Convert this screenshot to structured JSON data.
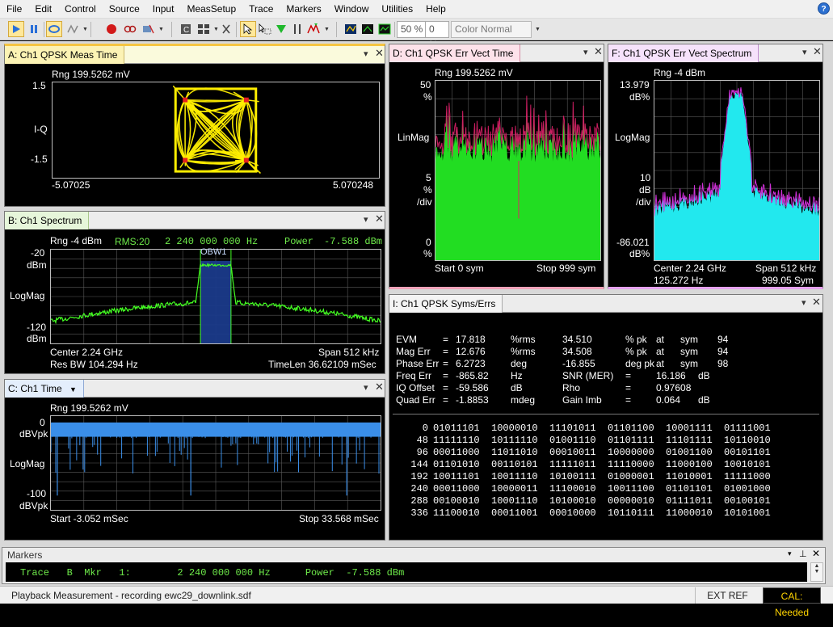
{
  "menu": [
    "File",
    "Edit",
    "Control",
    "Source",
    "Input",
    "MeasSetup",
    "Trace",
    "Markers",
    "Window",
    "Utilities",
    "Help"
  ],
  "toolbar": {
    "percent1": "50 %",
    "percent2": "0 %",
    "color_mode": "Color Normal"
  },
  "panes": {
    "a": {
      "title": "A: Ch1 QPSK Meas Time",
      "range": "Rng 199.5262 mV",
      "y_top": "1.5",
      "y_mid": "I-Q",
      "y_bot": "-1.5",
      "x_left": "-5.07025",
      "x_right": "5.070248",
      "trace_color": "#ffee00",
      "marker_color": "#e62020"
    },
    "b": {
      "title": "B: Ch1 Spectrum",
      "range": "Rng -4 dBm",
      "rms": "RMS:20",
      "freq": "2 240 000 000 Hz",
      "power_label": "Power",
      "power_value": "-7.588 dBm",
      "y_top": "-20",
      "y_top_unit": "dBm",
      "y_mid": "LogMag",
      "y_bot": "-120",
      "y_bot_unit": "dBm",
      "band_label": "OBW1",
      "center": "Center 2.24 GHz",
      "span": "Span 512 kHz",
      "res_bw": "Res BW 104.294  Hz",
      "time_len": "TimeLen 36.62109 mSec",
      "trace_color": "#44ff22"
    },
    "c": {
      "title": "C: Ch1 Time",
      "range": "Rng 199.5262 mV",
      "y_top": "0",
      "y_top_unit": "dBVpk",
      "y_mid": "LogMag",
      "y_bot": "-100",
      "y_bot_unit": "dBVpk",
      "start": "Start -3.052 mSec",
      "stop": "Stop 33.568 mSec",
      "trace_color": "#3a8ee8"
    },
    "d": {
      "title": "D: Ch1 QPSK Err Vect Time",
      "range": "Rng 199.5262 mV",
      "y_top": "50",
      "y_top_unit": "%",
      "y_mid": "LinMag",
      "y_div": "5",
      "y_div_unit": "%",
      "y_div_label": "/div",
      "y_bot": "0",
      "y_bot_unit": "%",
      "start": "Start 0  sym",
      "stop": "Stop 999  sym",
      "fill_color": "#22dd22",
      "peak_color": "#e0206a"
    },
    "f": {
      "title": "F: Ch1 QPSK Err Vect Spectrum",
      "range": "Rng -4 dBm",
      "y_top": "13.979",
      "y_top_unit": "dB%",
      "y_mid": "LogMag",
      "y_div": "10",
      "y_div_unit": "dB",
      "y_div_label": "/div",
      "y_bot": "-86.021",
      "y_bot_unit": "dB%",
      "center": "Center 2.24 GHz",
      "span": "Span 512 kHz",
      "res": "125.272  Hz",
      "sym": "999.05  Sym",
      "fill_color": "#22e8ee",
      "peak_color": "#d030d8"
    },
    "i": {
      "title": "I: Ch1 QPSK Syms/Errs",
      "errors": [
        {
          "name": "EVM",
          "eq": "=",
          "val": "17.818",
          "unit": "%rms",
          "val2": "34.510",
          "unit2": "% pk",
          "at": "at",
          "sym": "sym",
          "idx": "94",
          "extra": ""
        },
        {
          "name": "Mag Err",
          "eq": "=",
          "val": "12.676",
          "unit": "%rms",
          "val2": "34.508",
          "unit2": "% pk",
          "at": "at",
          "sym": "sym",
          "idx": "94",
          "extra": ""
        },
        {
          "name": "Phase Err",
          "eq": "=",
          "val": "6.2723",
          "unit": "deg",
          "val2": "-16.855",
          "unit2": "deg pk",
          "at": "at",
          "sym": "sym",
          "idx": "98",
          "extra": ""
        },
        {
          "name": "Freq Err",
          "eq": "=",
          "val": "-865.82",
          "unit": "Hz",
          "val2": "SNR (MER)",
          "unit2": "=",
          "at": "16.186",
          "sym": "",
          "idx": "",
          "extra": "dB"
        },
        {
          "name": "IQ Offset",
          "eq": "=",
          "val": "-59.586",
          "unit": "dB",
          "val2": "Rho",
          "unit2": "=",
          "at": "0.97608",
          "sym": "",
          "idx": "",
          "extra": ""
        },
        {
          "name": "Quad Err",
          "eq": "=",
          "val": "-1.8853",
          "unit": "mdeg",
          "val2": "Gain  Imb",
          "unit2": "=",
          "at": "0.064",
          "sym": "",
          "idx": "",
          "extra": "dB"
        }
      ],
      "symbols": [
        {
          "idx": "0",
          "bits": "01011101  10000010  11101011  01101100  10001111  01111001"
        },
        {
          "idx": "48",
          "bits": "11111110  10111110  01001110  01101111  11101111  10110010"
        },
        {
          "idx": "96",
          "bits": "00011000  11011010  00010011  10000000  01001100  00101101"
        },
        {
          "idx": "144",
          "bits": "01101010  00110101  11111011  11110000  11000100  10010101"
        },
        {
          "idx": "192",
          "bits": "10011101  10011110  10100111  01000001  11010001  11111000"
        },
        {
          "idx": "240",
          "bits": "00011000  10000011  11100010  10011100  01101101  01001000"
        },
        {
          "idx": "288",
          "bits": "00100010  10001110  10100010  00000010  01111011  00100101"
        },
        {
          "idx": "336",
          "bits": "11100010  00011001  00010000  10110111  11000010  10101001"
        }
      ]
    }
  },
  "markers": {
    "title": "Markers",
    "line": "Trace   B  Mkr   1:        2 240 000 000 Hz      Power  -7.588 dBm"
  },
  "status": {
    "message": "Playback Measurement - recording ewc29_downlink.sdf",
    "ext_ref": "EXT REF",
    "cal": "CAL: Needed"
  }
}
